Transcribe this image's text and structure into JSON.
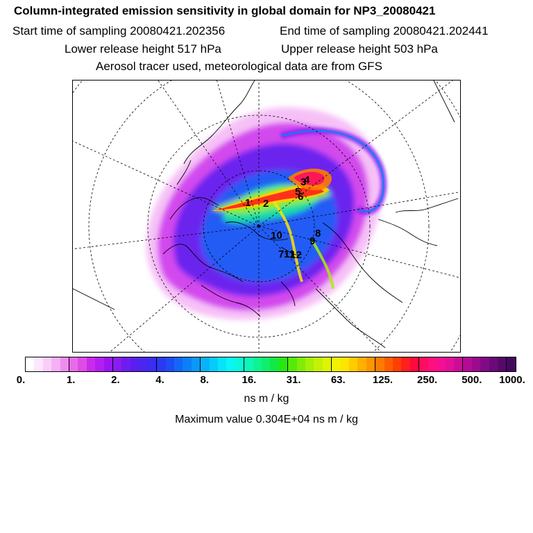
{
  "header": {
    "title": "Column-integrated emission sensitivity in global domain for NP3_20080421",
    "start_time": "Start time of sampling 20080421.202356",
    "end_time": "End time of sampling 20080421.202441",
    "lower_release": "Lower release height  517 hPa",
    "upper_release": "Upper release height  503 hPa",
    "tracer_note": "Aerosol tracer used, meteorological data are from GFS"
  },
  "map": {
    "projection": "polar stereographic, north pole centred",
    "point_labels": [
      "1",
      "2",
      "3",
      "4",
      "5",
      "6",
      "7",
      "8",
      "9",
      "10",
      "11",
      "12"
    ]
  },
  "colorbar": {
    "tick_labels": [
      "0.",
      "1.",
      "2.",
      "4.",
      "8.",
      "16.",
      "31.",
      "63.",
      "125.",
      "250.",
      "500.",
      "1000."
    ],
    "colors": [
      "#ffffff",
      "#ffe6ff",
      "#fbcdfb",
      "#f6b0f6",
      "#ef8cf0",
      "#e86ce9",
      "#dd4ce6",
      "#c92bec",
      "#b41ff0",
      "#9a15f2",
      "#8a1cf2",
      "#6f1cf0",
      "#5a1fee",
      "#4a26ee",
      "#3a2ef0",
      "#2b39f3",
      "#1f4df5",
      "#1566f7",
      "#0b80f8",
      "#0a99f9",
      "#08b3fa",
      "#07cbfa",
      "#07e3fa",
      "#08f7f4",
      "#0af8d8",
      "#0ef7b7",
      "#0ff492",
      "#10ef6c",
      "#12ea43",
      "#27e80f",
      "#55ea0b",
      "#7fec0a",
      "#a6ef08",
      "#c5f106",
      "#dff305",
      "#f3f204",
      "#ffe500",
      "#ffcc00",
      "#ffb000",
      "#ff9500",
      "#ff7a00",
      "#ff5e00",
      "#ff4000",
      "#ff2020",
      "#ff0a3c",
      "#ff0d61",
      "#ff0f7f",
      "#f50f92",
      "#e20f98",
      "#cc0d98",
      "#b30c94",
      "#9a0b8e",
      "#820a86",
      "#6b0a78",
      "#56096a",
      "#450860"
    ],
    "units": "ns m / kg",
    "max_value_text": "Maximum value  0.304E+04 ns m / kg"
  }
}
